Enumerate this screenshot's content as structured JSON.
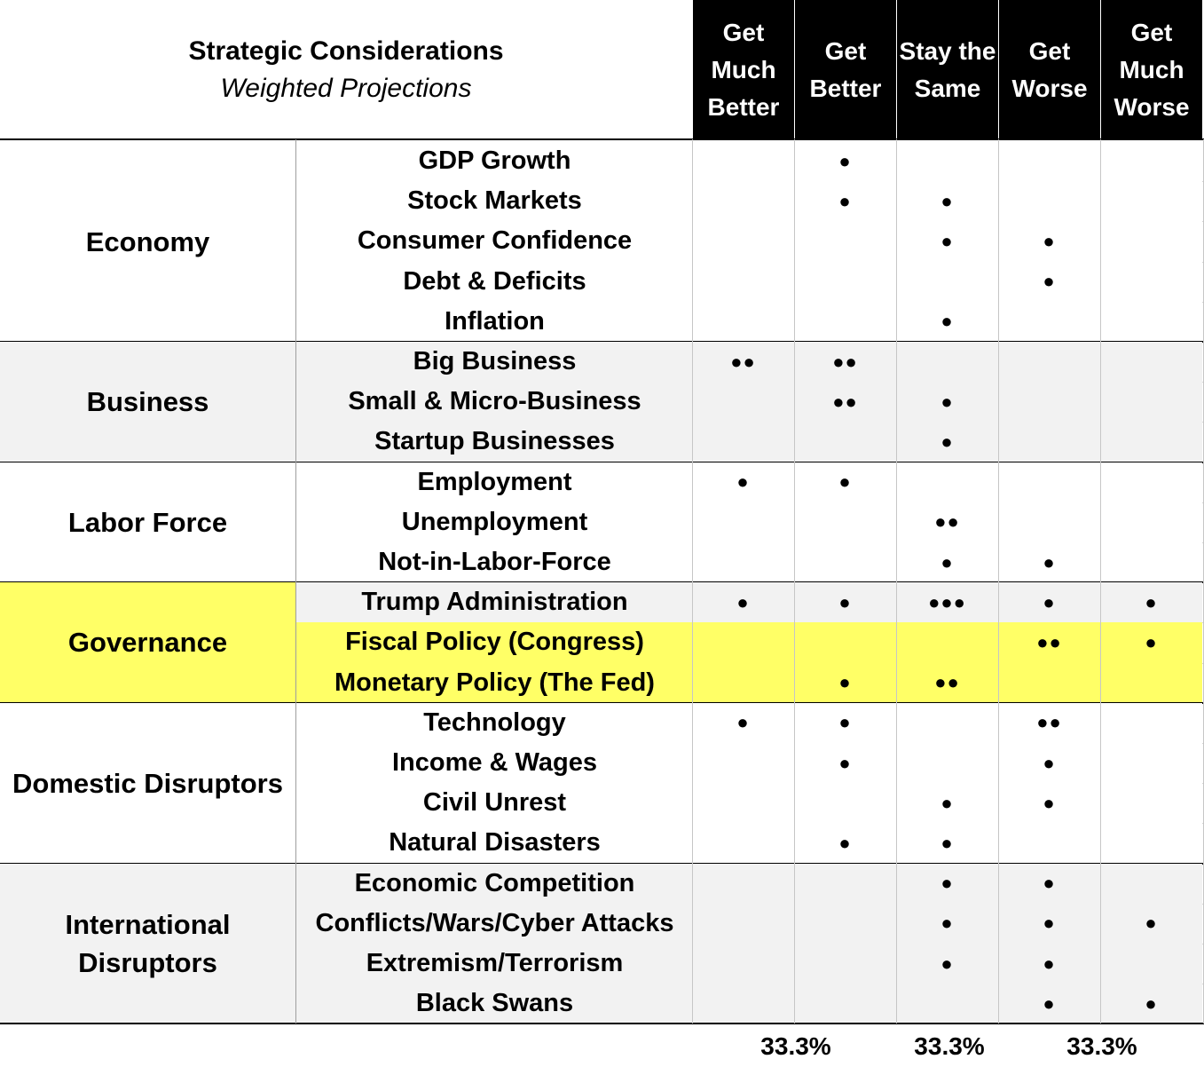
{
  "chart_data": {
    "type": "table",
    "title": "Strategic Considerations",
    "subtitle": "Weighted Projections",
    "columns": [
      "Get Much Better",
      "Get Better",
      "Stay the Same",
      "Get Worse",
      "Get Much Worse"
    ],
    "groups": [
      {
        "name": "Economy",
        "color": "#ffffff",
        "rows": [
          {
            "label": "GDP Growth",
            "cells": [
              0,
              1,
              0,
              0,
              0
            ]
          },
          {
            "label": "Stock Markets",
            "cells": [
              0,
              1,
              1,
              0,
              0
            ]
          },
          {
            "label": "Consumer Confidence",
            "cells": [
              0,
              0,
              1,
              1,
              0
            ]
          },
          {
            "label": "Debt & Deficits",
            "cells": [
              0,
              0,
              0,
              1,
              0
            ]
          },
          {
            "label": "Inflation",
            "cells": [
              0,
              0,
              1,
              0,
              0
            ]
          }
        ]
      },
      {
        "name": "Business",
        "color": "#f2f2f2",
        "rows": [
          {
            "label": "Big Business",
            "cells": [
              2,
              2,
              0,
              0,
              0
            ]
          },
          {
            "label": "Small & Micro-Business",
            "cells": [
              0,
              2,
              1,
              0,
              0
            ]
          },
          {
            "label": "Startup Businesses",
            "cells": [
              0,
              0,
              1,
              0,
              0
            ]
          }
        ]
      },
      {
        "name": "Labor Force",
        "color": "#ffffff",
        "rows": [
          {
            "label": "Employment",
            "cells": [
              1,
              1,
              0,
              0,
              0
            ]
          },
          {
            "label": "Unemployment",
            "cells": [
              0,
              0,
              2,
              0,
              0
            ]
          },
          {
            "label": "Not-in-Labor-Force",
            "cells": [
              0,
              0,
              1,
              1,
              0
            ]
          }
        ]
      },
      {
        "name": "Governance",
        "color": "#ffff66",
        "rows": [
          {
            "label": "Trump Administration",
            "cells": [
              1,
              1,
              3,
              1,
              1
            ],
            "color": "#f2f2f2"
          },
          {
            "label": "Fiscal Policy (Congress)",
            "cells": [
              0,
              0,
              0,
              2,
              1
            ]
          },
          {
            "label": "Monetary Policy (The Fed)",
            "cells": [
              0,
              1,
              2,
              0,
              0
            ]
          }
        ]
      },
      {
        "name": "Domestic Disruptors",
        "color": "#ffffff",
        "rows": [
          {
            "label": "Technology",
            "cells": [
              1,
              1,
              0,
              2,
              0
            ]
          },
          {
            "label": "Income & Wages",
            "cells": [
              0,
              1,
              0,
              1,
              0
            ]
          },
          {
            "label": "Civil Unrest",
            "cells": [
              0,
              0,
              1,
              1,
              0
            ]
          },
          {
            "label": "Natural Disasters",
            "cells": [
              0,
              1,
              1,
              0,
              0
            ]
          }
        ]
      },
      {
        "name": "International Disruptors",
        "color": "#f2f2f2",
        "rows": [
          {
            "label": "Economic Competition",
            "cells": [
              0,
              0,
              1,
              1,
              0
            ]
          },
          {
            "label": "Conflicts/Wars/Cyber Attacks",
            "cells": [
              0,
              0,
              1,
              1,
              1
            ]
          },
          {
            "label": "Extremism/Terrorism",
            "cells": [
              0,
              0,
              1,
              1,
              0
            ]
          },
          {
            "label": "Black Swans",
            "cells": [
              0,
              0,
              0,
              1,
              1
            ]
          }
        ]
      }
    ],
    "footer": [
      "33.3%",
      "33.3%",
      "33.3%"
    ]
  }
}
